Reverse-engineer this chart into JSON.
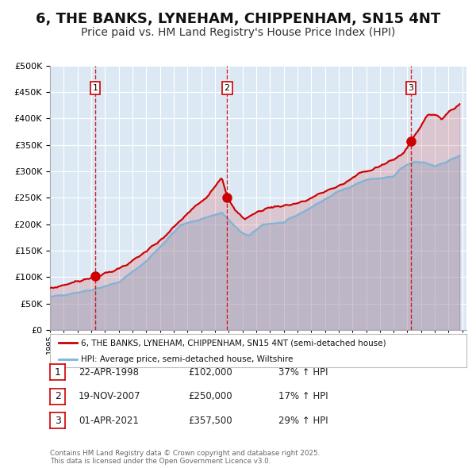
{
  "title": "6, THE BANKS, LYNEHAM, CHIPPENHAM, SN15 4NT",
  "subtitle": "Price paid vs. HM Land Registry's House Price Index (HPI)",
  "title_fontsize": 13,
  "subtitle_fontsize": 10,
  "background_color": "#ffffff",
  "plot_bg_color": "#dce9f5",
  "grid_color": "#ffffff",
  "ylim": [
    0,
    500000
  ],
  "yticks": [
    0,
    50000,
    100000,
    150000,
    200000,
    250000,
    300000,
    350000,
    400000,
    450000,
    500000
  ],
  "sale_color": "#cc0000",
  "hpi_color": "#7fb4d8",
  "sale_label": "6, THE BANKS, LYNEHAM, CHIPPENHAM, SN15 4NT (semi-detached house)",
  "hpi_label": "HPI: Average price, semi-detached house, Wiltshire",
  "vline_color": "#cc0000",
  "sale_marker_color": "#cc0000",
  "transactions": [
    {
      "num": 1,
      "date_str": "22-APR-1998",
      "year": 1998.3,
      "price": 102000,
      "pct": "37%",
      "dir": "↑"
    },
    {
      "num": 2,
      "date_str": "19-NOV-2007",
      "year": 2007.88,
      "price": 250000,
      "pct": "17%",
      "dir": "↑"
    },
    {
      "num": 3,
      "date_str": "01-APR-2021",
      "year": 2021.25,
      "price": 357500,
      "pct": "29%",
      "dir": "↑"
    }
  ],
  "footer": "Contains HM Land Registry data © Crown copyright and database right 2025.\nThis data is licensed under the Open Government Licence v3.0."
}
